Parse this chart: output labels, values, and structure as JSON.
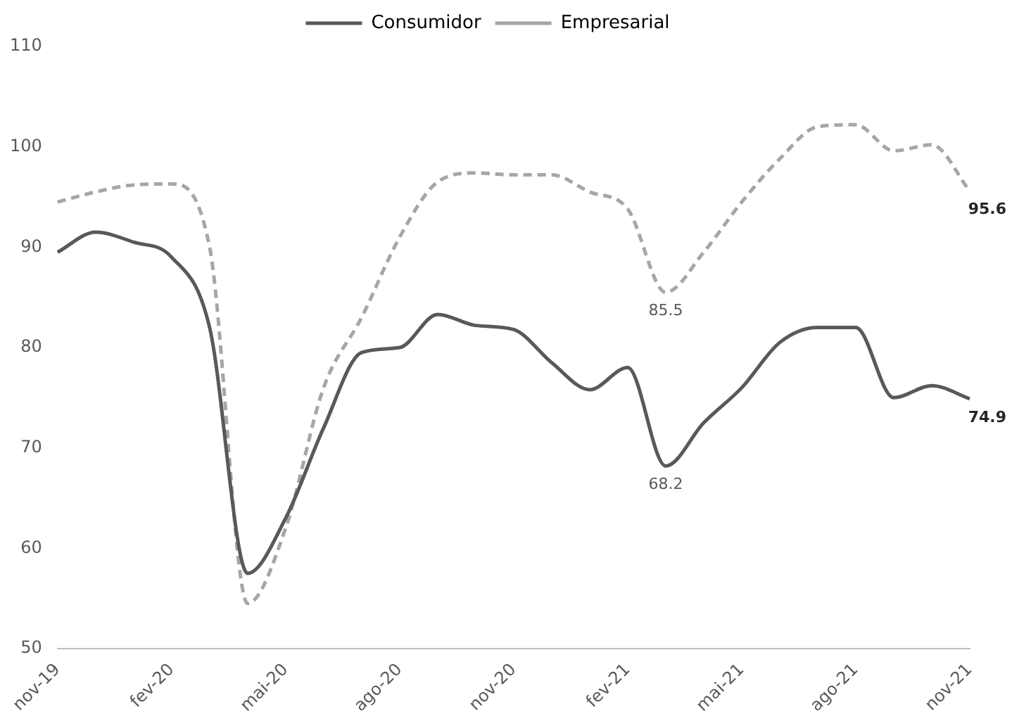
{
  "chart_data": {
    "type": "line",
    "categories": [
      "nov-19",
      null,
      null,
      "fev-20",
      null,
      null,
      "mai-20",
      null,
      null,
      "ago-20",
      null,
      null,
      "nov-20",
      null,
      null,
      "fev-21",
      null,
      null,
      "mai-21",
      null,
      null,
      "ago-21",
      null,
      null,
      "nov-21"
    ],
    "series": [
      {
        "name": "Consumidor",
        "color": "#595959",
        "line_style": "solid",
        "values": [
          89.5,
          91.5,
          90.5,
          89,
          82,
          57.5,
          63,
          72,
          79.5,
          80,
          83.3,
          82.2,
          81.8,
          78.5,
          75.8,
          78,
          68.2,
          72.5,
          76,
          80.5,
          82,
          82,
          75,
          76.2,
          74.9
        ],
        "value_labels": [
          null,
          null,
          null,
          null,
          null,
          null,
          null,
          null,
          null,
          null,
          null,
          null,
          null,
          null,
          null,
          null,
          "68.2",
          null,
          null,
          null,
          null,
          null,
          null,
          null,
          "74.9"
        ]
      },
      {
        "name": "Empresarial",
        "color": "#a6a6a6",
        "line_style": "dashed",
        "values": [
          94.5,
          95.5,
          96.2,
          96.3,
          90,
          54.5,
          62,
          76,
          83,
          91,
          96.5,
          97.4,
          97.2,
          97.2,
          95.5,
          93.8,
          85.5,
          89.5,
          94.5,
          98.8,
          102,
          102.2,
          99.6,
          100.2,
          95.6
        ],
        "value_labels": [
          null,
          null,
          null,
          null,
          null,
          null,
          null,
          null,
          null,
          null,
          null,
          null,
          null,
          null,
          null,
          null,
          "85.5",
          null,
          null,
          null,
          null,
          null,
          null,
          null,
          "95.6"
        ]
      }
    ],
    "ylim": [
      50,
      110
    ],
    "yticks": [
      50,
      60,
      70,
      80,
      90,
      100,
      110
    ],
    "grid": false,
    "legend": "top",
    "marker": "none"
  }
}
